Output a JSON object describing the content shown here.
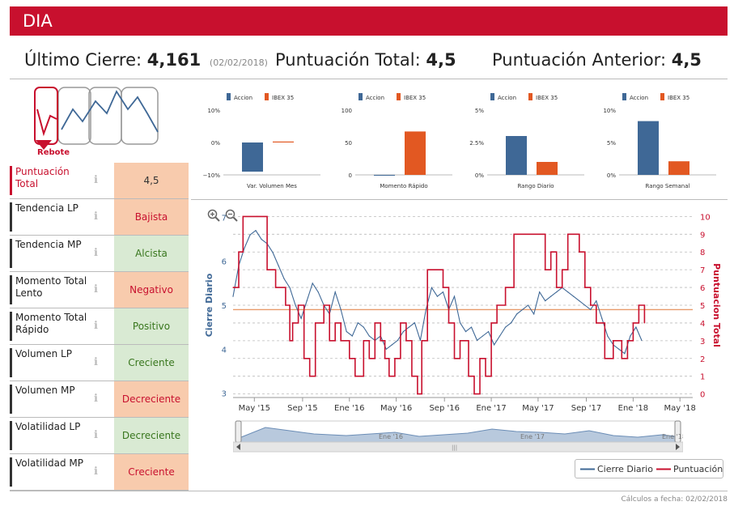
{
  "title": "DIA",
  "header": {
    "cierre_label": "Último Cierre:",
    "cierre_value": "4,161",
    "cierre_date": "(02/02/2018)",
    "total_label": "Puntuación Total:",
    "total_value": "4,5",
    "anterior_label": "Puntuación Anterior:",
    "anterior_value": "4,5"
  },
  "pattern_label": "Rebote",
  "colors": {
    "brand": "#c8102e",
    "accion": "#3f6896",
    "ibex": "#e25822",
    "negative_bg": "#f8cbad",
    "positive_bg": "#d9ead3"
  },
  "indicators": [
    {
      "label": "Puntuación Total",
      "value": "4,5",
      "tone": "neu"
    },
    {
      "label": "Tendencia LP",
      "value": "Bajista",
      "tone": "neg"
    },
    {
      "label": "Tendencia MP",
      "value": "Alcista",
      "tone": "pos"
    },
    {
      "label": "Momento Total Lento",
      "value": "Negativo",
      "tone": "neg"
    },
    {
      "label": "Momento Total Rápido",
      "value": "Positivo",
      "tone": "pos"
    },
    {
      "label": "Volumen LP",
      "value": "Creciente",
      "tone": "pos"
    },
    {
      "label": "Volumen MP",
      "value": "Decreciente",
      "tone": "neg"
    },
    {
      "label": "Volatilidad LP",
      "value": "Decreciente",
      "tone": "pos"
    },
    {
      "label": "Volatilidad MP",
      "value": "Creciente",
      "tone": "neg"
    }
  ],
  "chart_data": [
    {
      "type": "bar",
      "title": "Var. Volumen Mes",
      "legend": [
        "Accion",
        "IBEX 35"
      ],
      "categories": [
        "Accion",
        "IBEX 35"
      ],
      "values": [
        -9,
        0.3
      ],
      "yticks": [
        "10%",
        "0%",
        "−10%"
      ],
      "ylim": [
        -10,
        10
      ]
    },
    {
      "type": "bar",
      "title": "Momento Rápido",
      "legend": [
        "Accion",
        "IBEX 35"
      ],
      "categories": [
        "Accion",
        "IBEX 35"
      ],
      "values": [
        0,
        67
      ],
      "yticks": [
        "100",
        "50",
        "0"
      ],
      "ylim": [
        0,
        100
      ]
    },
    {
      "type": "bar",
      "title": "Rango Diario",
      "legend": [
        "Accion",
        "IBEX 35"
      ],
      "categories": [
        "Accion",
        "IBEX 35"
      ],
      "values": [
        3.0,
        1.0
      ],
      "yticks": [
        "5%",
        "2.5%",
        "0%"
      ],
      "ylim": [
        0,
        5
      ]
    },
    {
      "type": "bar",
      "title": "Rango Semanal",
      "legend": [
        "Accion",
        "IBEX 35"
      ],
      "categories": [
        "Accion",
        "IBEX 35"
      ],
      "values": [
        8.3,
        2.1
      ],
      "yticks": [
        "10%",
        "5%",
        "0%"
      ],
      "ylim": [
        0,
        10
      ]
    },
    {
      "type": "line",
      "title": "",
      "ylabel": "Cierre Diario",
      "y2label": "Puntuacion Total",
      "ylim": [
        2.9,
        7.1
      ],
      "y2lim": [
        -0.2,
        10.2
      ],
      "yticks": [
        3,
        4,
        5,
        6,
        7
      ],
      "y2ticks": [
        0,
        1,
        2,
        3,
        4,
        5,
        6,
        7,
        8,
        9,
        10
      ],
      "xlim": [
        2015.18,
        2018.42
      ],
      "xticks": [
        {
          "x": 2015.33,
          "label": "May '15"
        },
        {
          "x": 2015.67,
          "label": "Sep '15"
        },
        {
          "x": 2016.0,
          "label": "Ene '16"
        },
        {
          "x": 2016.33,
          "label": "May '16"
        },
        {
          "x": 2016.67,
          "label": "Sep '16"
        },
        {
          "x": 2017.0,
          "label": "Ene '17"
        },
        {
          "x": 2017.33,
          "label": "May '17"
        },
        {
          "x": 2017.67,
          "label": "Sep '17"
        },
        {
          "x": 2018.0,
          "label": "Ene '18"
        },
        {
          "x": 2018.33,
          "label": "May '18"
        }
      ],
      "reference_line": 4.9,
      "series": [
        {
          "name": "Cierre Diario",
          "axis": "left",
          "x": [
            2015.18,
            2015.22,
            2015.26,
            2015.3,
            2015.34,
            2015.38,
            2015.42,
            2015.46,
            2015.5,
            2015.54,
            2015.58,
            2015.62,
            2015.66,
            2015.7,
            2015.74,
            2015.78,
            2015.82,
            2015.86,
            2015.9,
            2015.94,
            2015.98,
            2016.02,
            2016.06,
            2016.1,
            2016.14,
            2016.18,
            2016.22,
            2016.26,
            2016.3,
            2016.34,
            2016.38,
            2016.42,
            2016.46,
            2016.5,
            2016.54,
            2016.58,
            2016.62,
            2016.66,
            2016.7,
            2016.74,
            2016.78,
            2016.82,
            2016.86,
            2016.9,
            2016.94,
            2016.98,
            2017.02,
            2017.06,
            2017.1,
            2017.14,
            2017.18,
            2017.22,
            2017.26,
            2017.3,
            2017.34,
            2017.38,
            2017.42,
            2017.46,
            2017.5,
            2017.54,
            2017.58,
            2017.62,
            2017.66,
            2017.7,
            2017.74,
            2017.78,
            2017.82,
            2017.86,
            2017.9,
            2017.94,
            2017.98,
            2018.02,
            2018.06
          ],
          "values": [
            5.2,
            5.9,
            6.3,
            6.6,
            6.7,
            6.5,
            6.4,
            6.2,
            5.9,
            5.6,
            5.4,
            5.0,
            4.7,
            5.1,
            5.5,
            5.3,
            5.0,
            4.8,
            5.3,
            4.9,
            4.4,
            4.3,
            4.6,
            4.5,
            4.3,
            4.2,
            4.3,
            4.0,
            4.1,
            4.2,
            4.4,
            4.5,
            4.6,
            4.2,
            4.9,
            5.4,
            5.2,
            5.3,
            4.9,
            5.2,
            4.6,
            4.4,
            4.5,
            4.2,
            4.3,
            4.4,
            4.1,
            4.3,
            4.5,
            4.6,
            4.8,
            4.9,
            5.0,
            4.8,
            5.3,
            5.1,
            5.2,
            5.3,
            5.4,
            5.3,
            5.2,
            5.1,
            5.0,
            4.9,
            5.1,
            4.7,
            4.3,
            4.1,
            4.0,
            3.9,
            4.3,
            4.5,
            4.2
          ]
        },
        {
          "name": "Puntuación",
          "axis": "right",
          "step": true,
          "x": [
            2015.18,
            2015.22,
            2015.25,
            2015.35,
            2015.42,
            2015.48,
            2015.55,
            2015.58,
            2015.6,
            2015.64,
            2015.68,
            2015.72,
            2015.76,
            2015.82,
            2015.86,
            2015.9,
            2015.94,
            2016.0,
            2016.04,
            2016.1,
            2016.14,
            2016.18,
            2016.22,
            2016.25,
            2016.28,
            2016.32,
            2016.36,
            2016.4,
            2016.44,
            2016.48,
            2016.51,
            2016.55,
            2016.6,
            2016.66,
            2016.7,
            2016.74,
            2016.78,
            2016.84,
            2016.88,
            2016.92,
            2016.96,
            2017.0,
            2017.04,
            2017.1,
            2017.16,
            2017.24,
            2017.34,
            2017.38,
            2017.42,
            2017.46,
            2017.5,
            2017.54,
            2017.58,
            2017.62,
            2017.66,
            2017.7,
            2017.74,
            2017.8,
            2017.86,
            2017.92,
            2017.96,
            2018.0,
            2018.04,
            2018.08
          ],
          "values": [
            6,
            8,
            10,
            10,
            7,
            6,
            5,
            3,
            4,
            5,
            2,
            1,
            4,
            5,
            3,
            4,
            3,
            2,
            1,
            3,
            2,
            4,
            3,
            2,
            1,
            2,
            4,
            3,
            1,
            0,
            3,
            7,
            7,
            6,
            4,
            2,
            3,
            1,
            0,
            2,
            1,
            4,
            5,
            6,
            9,
            9,
            9,
            7,
            8,
            6,
            7,
            9,
            9,
            8,
            6,
            5,
            4,
            2,
            3,
            2,
            3,
            4,
            5,
            4
          ]
        }
      ]
    }
  ],
  "navigator": {
    "labels": [
      "Ene '16",
      "Ene '17",
      "Ene '18"
    ]
  },
  "footer": "Cálculos a fecha: 02/02/2018"
}
